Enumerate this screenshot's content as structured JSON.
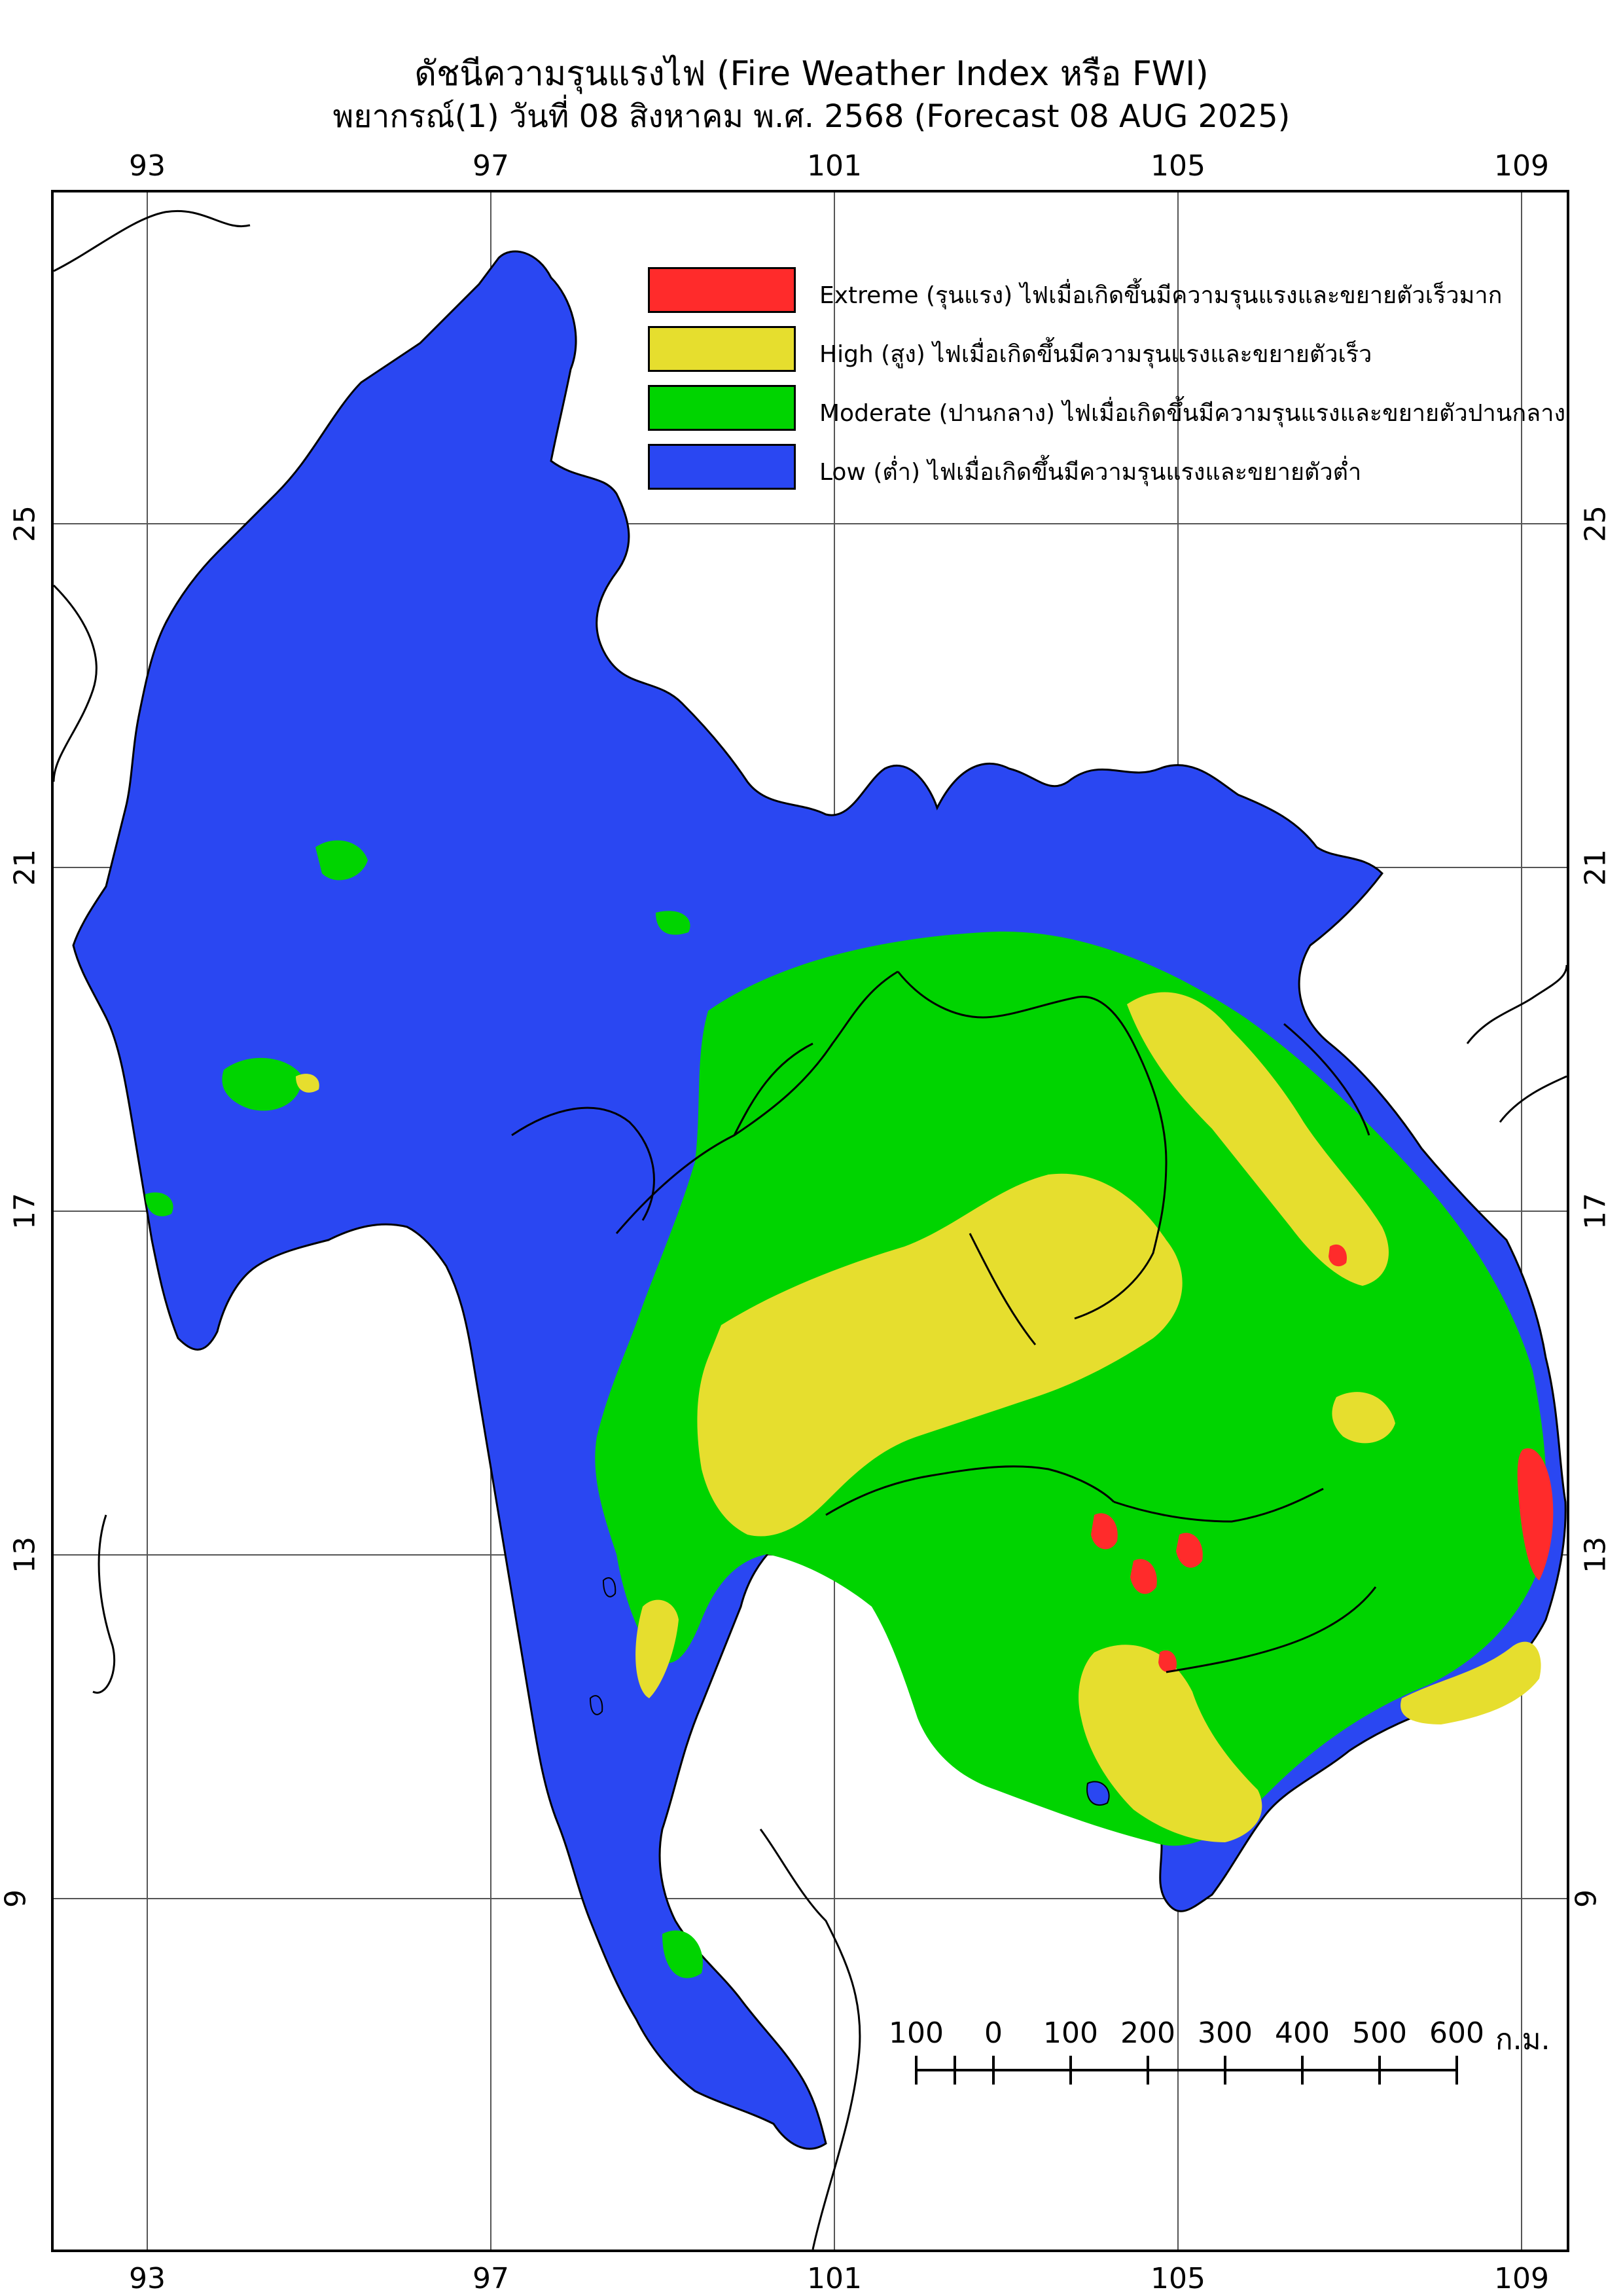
{
  "title": {
    "line1": "ดัชนีความรุนแรงไฟ (Fire Weather Index หรือ FWI)",
    "line2": "พยากรณ์(1) วันที่ 08 สิงหาคม พ.ศ. 2568 (Forecast 08 AUG 2025)"
  },
  "axes": {
    "longitude_ticks": [
      "93",
      "97",
      "101",
      "105",
      "109"
    ],
    "latitude_ticks": [
      "25",
      "21",
      "17",
      "13",
      "9"
    ]
  },
  "legend": [
    {
      "color": "#ff2b2b",
      "label": "Extreme (รุนแรง) ไฟเมื่อเกิดขึ้นมีความรุนแรงและขยายตัวเร็วมาก"
    },
    {
      "color": "#e6de2e",
      "label": "High (สูง) ไฟเมื่อเกิดขึ้นมีความรุนแรงและขยายตัวเร็ว"
    },
    {
      "color": "#00d400",
      "label": "Moderate (ปานกลาง) ไฟเมื่อเกิดขึ้นมีความรุนแรงและขยายตัวปานกลาง"
    },
    {
      "color": "#2a47f2",
      "label": "Low (ต่ำ) ไฟเมื่อเกิดขึ้นมีความรุนแรงและขยายตัวต่ำ"
    }
  ],
  "scale_bar": {
    "labels": [
      "100",
      "0",
      "100",
      "200",
      "300",
      "400",
      "500",
      "600"
    ],
    "unit": "ก.ม."
  }
}
